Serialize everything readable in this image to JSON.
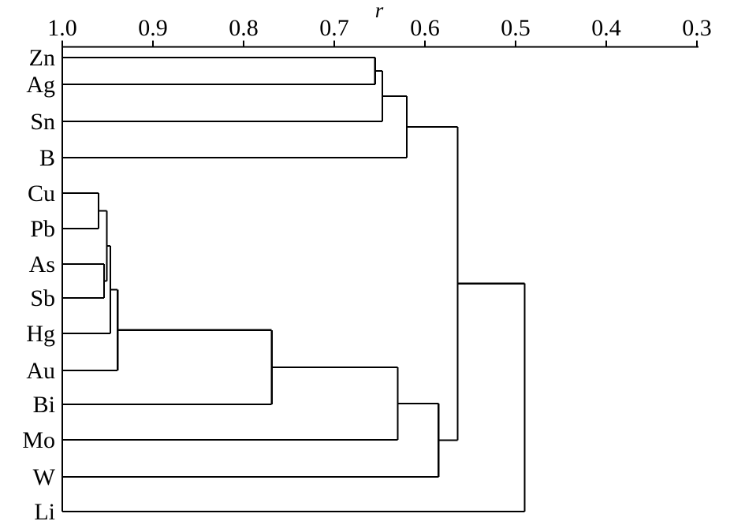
{
  "figure": {
    "background_color": "#ffffff",
    "line_color": "#000000"
  },
  "chart_data": {
    "type": "dendrogram",
    "orientation": "horizontal",
    "xlabel": "r",
    "axis_range": [
      1.0,
      0.3
    ],
    "axis_tick_values": [
      1.0,
      0.9,
      0.8,
      0.7,
      0.6,
      0.5,
      0.4,
      0.3
    ],
    "axis_tick_labels": [
      "1.0",
      "0.9",
      "0.8",
      "0.7",
      "0.6",
      "0.5",
      "0.4",
      "0.3"
    ],
    "grid": "off",
    "legend": "none",
    "leaves": [
      "Zn",
      "Ag",
      "Sn",
      "B",
      "Cu",
      "Pb",
      "As",
      "Sb",
      "Hg",
      "Au",
      "Bi",
      "Mo",
      "W",
      "Li"
    ],
    "merges": [
      {
        "id": "m1",
        "children": [
          "Zn",
          "Ag"
        ],
        "r": 0.655
      },
      {
        "id": "m2",
        "children": [
          "m1",
          "Sn"
        ],
        "r": 0.647
      },
      {
        "id": "m3",
        "children": [
          "m2",
          "B"
        ],
        "r": 0.62
      },
      {
        "id": "m4",
        "children": [
          "Cu",
          "Pb"
        ],
        "r": 0.96
      },
      {
        "id": "m5",
        "children": [
          "As",
          "Sb"
        ],
        "r": 0.954
      },
      {
        "id": "m6",
        "children": [
          "m4",
          "m5"
        ],
        "r": 0.951
      },
      {
        "id": "m7",
        "children": [
          "m6",
          "Hg"
        ],
        "r": 0.947
      },
      {
        "id": "m8",
        "children": [
          "m7",
          "Au"
        ],
        "r": 0.939
      },
      {
        "id": "m9",
        "children": [
          "m8",
          "Bi"
        ],
        "r": 0.769
      },
      {
        "id": "m10",
        "children": [
          "m9",
          "Mo"
        ],
        "r": 0.63
      },
      {
        "id": "m11",
        "children": [
          "m10",
          "W"
        ],
        "r": 0.585
      },
      {
        "id": "m12",
        "children": [
          "m3",
          "m11"
        ],
        "r": 0.564
      },
      {
        "id": "m13",
        "children": [
          "m12",
          "Li"
        ],
        "r": 0.49
      }
    ]
  }
}
